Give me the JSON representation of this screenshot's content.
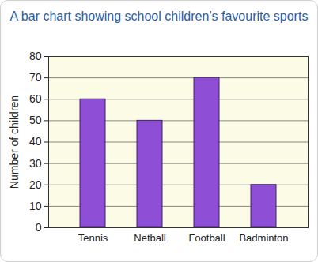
{
  "chart_data": {
    "type": "bar",
    "title": "A bar chart showing school children’s favourite sports",
    "y_label": "Number of children",
    "categories": [
      "Tennis",
      "Netball",
      "Football",
      "Badminton"
    ],
    "values": [
      60,
      50,
      70,
      20
    ],
    "color": "#8e4fd6",
    "ylim": [
      0,
      80
    ],
    "yticks": [
      0,
      10,
      20,
      30,
      40,
      50,
      60,
      70,
      80
    ],
    "grid": true
  }
}
